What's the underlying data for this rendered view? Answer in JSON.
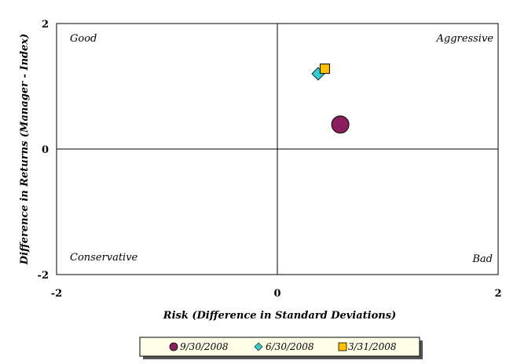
{
  "chart_data": {
    "type": "scatter",
    "xlabel": "Risk (Difference in Standard Deviations)",
    "ylabel": "Difference in Returns (Manager - Index)",
    "xlim": [
      -2,
      2
    ],
    "ylim": [
      -2,
      2
    ],
    "x_ticks": [
      "-2",
      "0",
      "2"
    ],
    "y_ticks": [
      "2",
      "0",
      "-2"
    ],
    "grid": false,
    "quadrant_labels": {
      "top_left": "Good",
      "top_right": "Aggressive",
      "bottom_left": "Conservative",
      "bottom_right": "Bad"
    },
    "series": [
      {
        "name": "9/30/2008",
        "marker": "circle",
        "color": "#8B1E5E",
        "x": 0.57,
        "y": 0.39
      },
      {
        "name": "6/30/2008",
        "marker": "diamond",
        "color": "#33CCCC",
        "x": 0.37,
        "y": 1.2
      },
      {
        "name": "3/31/2008",
        "marker": "square",
        "color": "#FFC000",
        "x": 0.43,
        "y": 1.28
      }
    ],
    "legend_position": "bottom"
  }
}
